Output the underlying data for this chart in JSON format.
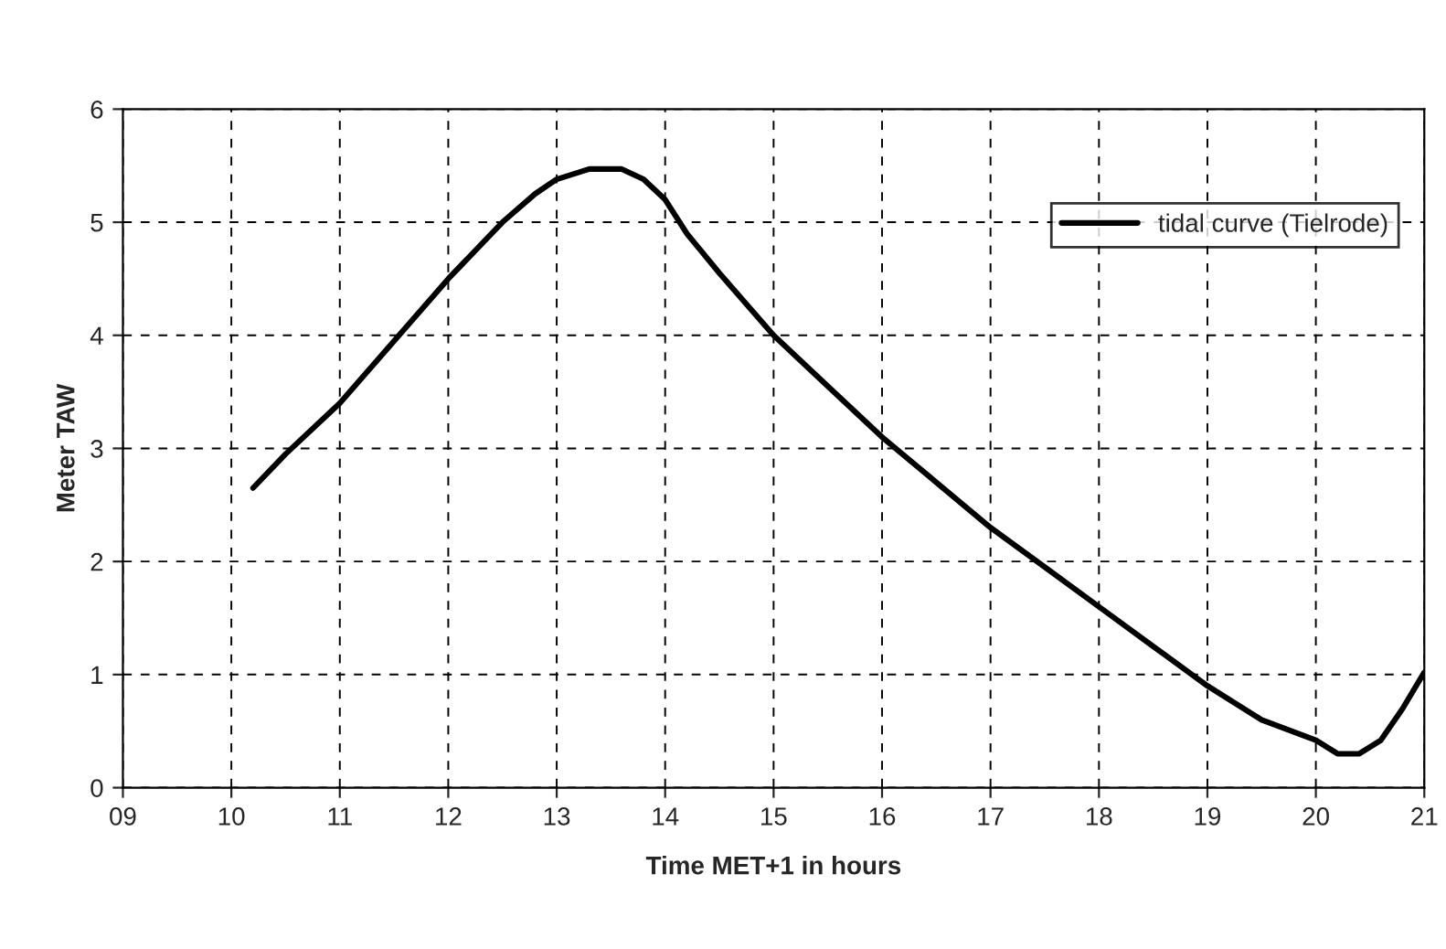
{
  "chart_data": {
    "type": "line",
    "xlabel": "Time MET+1 in hours",
    "ylabel": "Meter TAW",
    "xlim": [
      9,
      21
    ],
    "ylim": [
      0,
      6
    ],
    "xticks": [
      {
        "value": 9,
        "label": "09"
      },
      10,
      11,
      12,
      13,
      14,
      15,
      16,
      17,
      18,
      19,
      20,
      21
    ],
    "yticks": [
      0,
      1,
      2,
      3,
      4,
      5,
      6
    ],
    "grid": true,
    "legend": "top right",
    "line_style": "solid",
    "marker": "none",
    "series": [
      {
        "name": "tidal curve (Tielrode)",
        "color": "#000000",
        "x": [
          10.2,
          10.5,
          11,
          11.5,
          12,
          12.5,
          12.8,
          13,
          13.3,
          13.6,
          13.8,
          14,
          14.2,
          14.5,
          15,
          15.5,
          16,
          16.5,
          17,
          17.5,
          18,
          18.5,
          19,
          19.5,
          20,
          20.2,
          20.4,
          20.6,
          20.8,
          21
        ],
        "values": [
          2.65,
          2.95,
          3.4,
          3.95,
          4.5,
          5.0,
          5.25,
          5.38,
          5.47,
          5.47,
          5.38,
          5.2,
          4.9,
          4.55,
          4.0,
          3.55,
          3.1,
          2.7,
          2.3,
          1.95,
          1.6,
          1.25,
          0.9,
          0.6,
          0.42,
          0.3,
          0.3,
          0.42,
          0.7,
          1.02
        ]
      }
    ]
  }
}
